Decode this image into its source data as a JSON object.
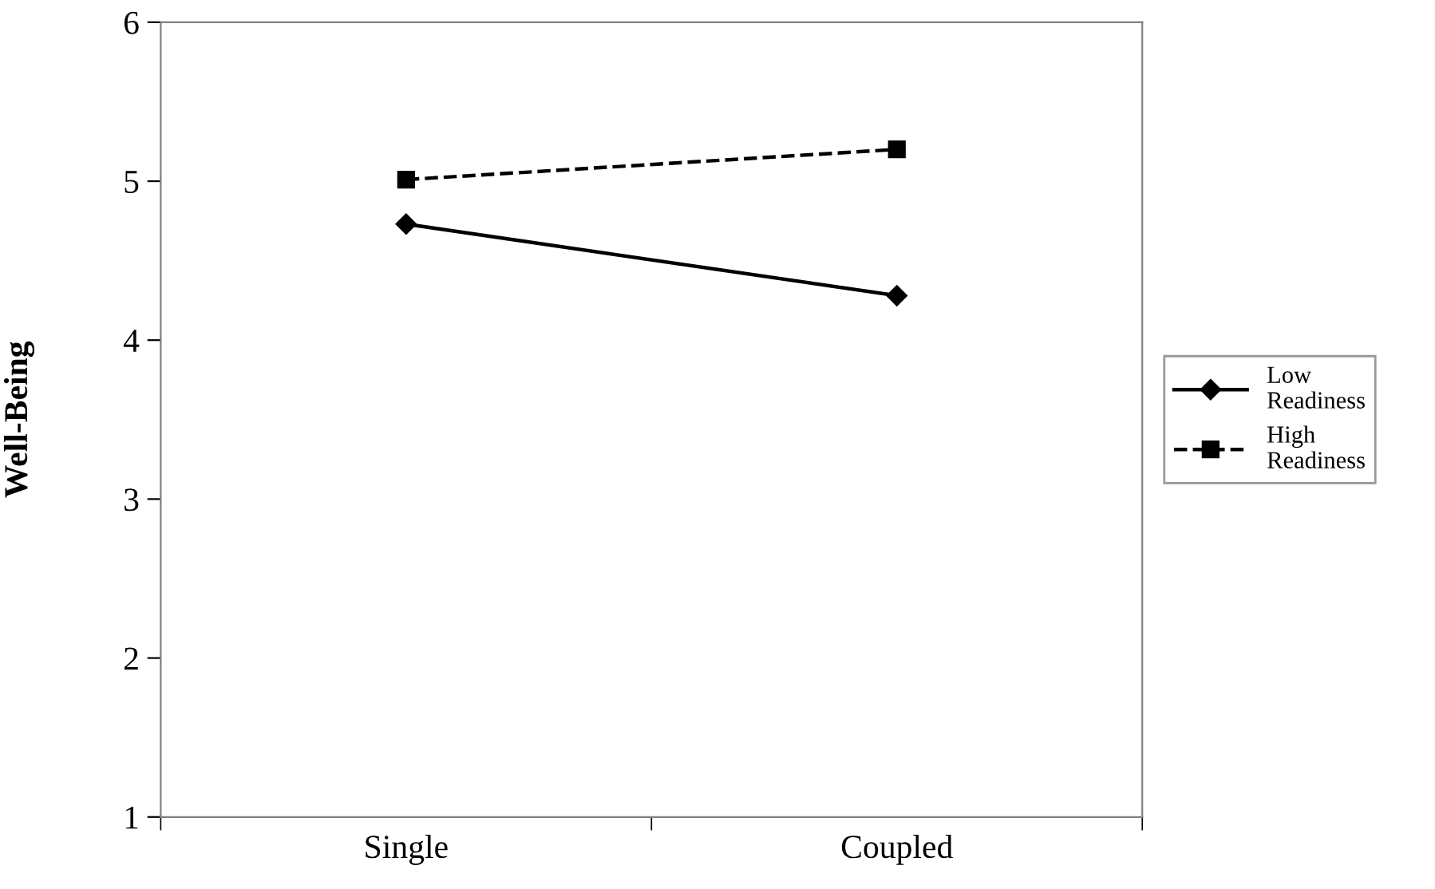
{
  "chart_data": {
    "type": "line",
    "ylabel": "Well-Being",
    "categories": [
      "Single",
      "Coupled"
    ],
    "series": [
      {
        "name": "Low Readiness",
        "color": "#000000",
        "values": [
          4.73,
          4.28
        ],
        "marker": "diamond",
        "line_style": "solid"
      },
      {
        "name": "High Readiness",
        "color": "#000000",
        "values": [
          5.01,
          5.2
        ],
        "marker": "square",
        "line_style": "dashed"
      }
    ],
    "ylim": [
      1,
      6
    ],
    "yticks": [
      1,
      2,
      3,
      4,
      5,
      6
    ],
    "grid": false,
    "legend": "right"
  }
}
